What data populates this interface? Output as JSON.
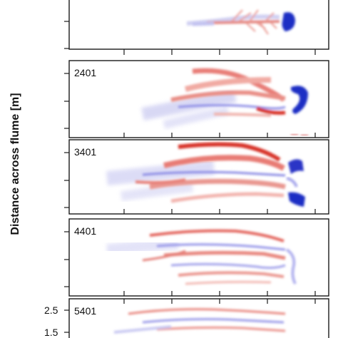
{
  "figure": {
    "y_axis_label": "Distance across flume [m]",
    "panels": [
      {
        "run_label": ""
      },
      {
        "run_label": "2401"
      },
      {
        "run_label": "3401"
      },
      {
        "run_label": "4401"
      },
      {
        "run_label": "5401"
      }
    ],
    "y_tick_labels": [
      "2.5",
      "1.5"
    ],
    "colormap": {
      "positive": "#d6322b",
      "negative": "#2431c8",
      "neutral": "#ffffff"
    }
  }
}
